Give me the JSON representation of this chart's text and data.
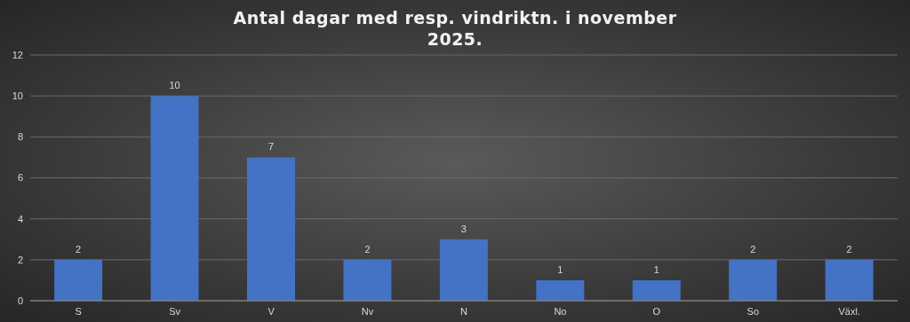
{
  "chart_data": {
    "type": "bar",
    "title": "Antal dagar med resp. vindriktn. i november 2025.",
    "categories": [
      "S",
      "Sv",
      "V",
      "Nv",
      "N",
      "No",
      "O",
      "So",
      "Växl."
    ],
    "series": [
      {
        "color": "#4472c4",
        "values": [
          2,
          10,
          7,
          2,
          3,
          1,
          1,
          2,
          2
        ]
      }
    ],
    "ylim": [
      0,
      12
    ],
    "yticks": [
      0,
      2,
      4,
      6,
      8,
      10,
      12
    ],
    "grid": "y",
    "data_labels": true,
    "legend": false
  }
}
